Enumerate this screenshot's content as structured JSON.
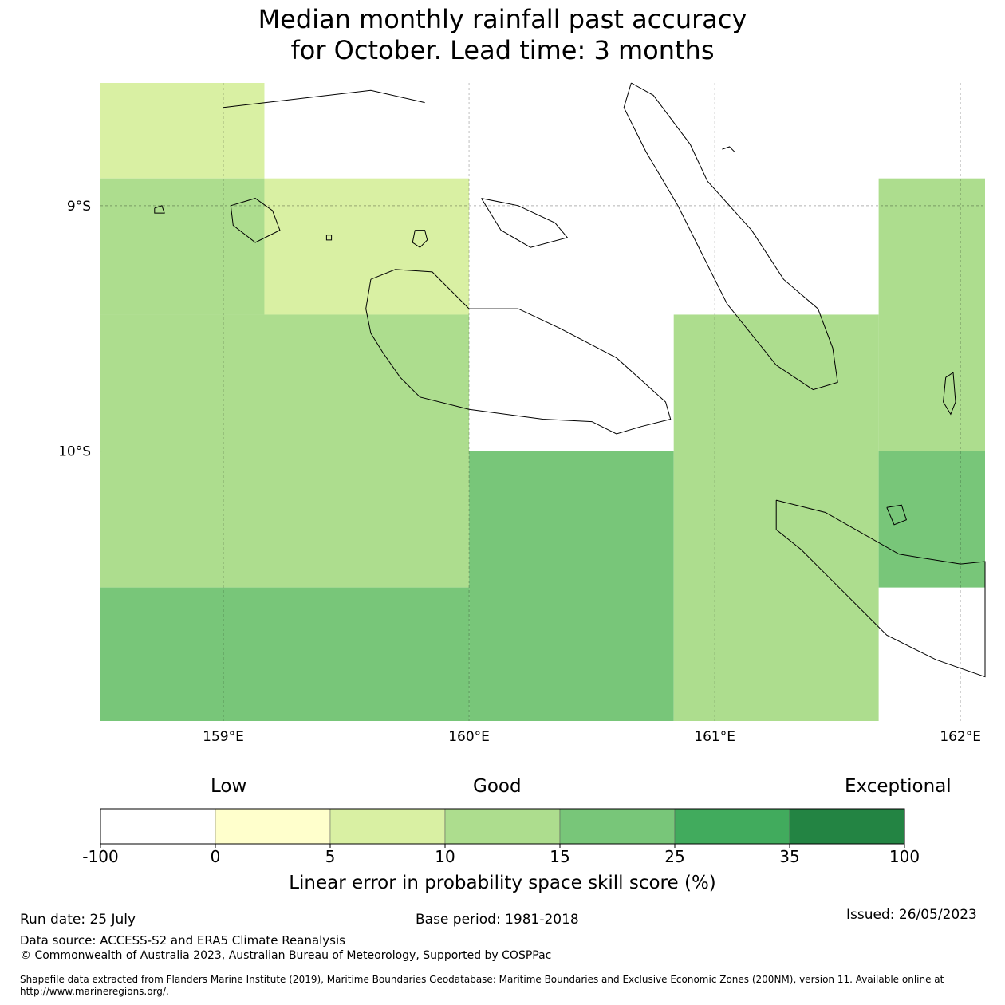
{
  "title": {
    "line1": "Median monthly rainfall past accuracy",
    "line2": "for October. Lead time: 3 months"
  },
  "map": {
    "lon_range": [
      158.5,
      162.1
    ],
    "lat_range": [
      -11.1,
      -8.5
    ],
    "lon_ticks": [
      159,
      160,
      161,
      162
    ],
    "lat_ticks": [
      -9,
      -10
    ],
    "lon_tick_labels": [
      "159°E",
      "160°E",
      "161°E",
      "162°E"
    ],
    "lat_tick_labels": [
      "9°S",
      "10°S"
    ],
    "grid": true,
    "cells": [
      {
        "lon": [
          158.5,
          159.167
        ],
        "lat": [
          -8.889,
          -8.5
        ],
        "value": 7.5
      },
      {
        "lon": [
          158.5,
          159.167
        ],
        "lat": [
          -9.444,
          -8.889
        ],
        "value": 12.5
      },
      {
        "lon": [
          159.167,
          160.0
        ],
        "lat": [
          -9.444,
          -8.889
        ],
        "value": 7.5
      },
      {
        "lon": [
          158.5,
          160.0
        ],
        "lat": [
          -10.0,
          -9.444
        ],
        "value": 12.5
      },
      {
        "lon": [
          158.5,
          160.0
        ],
        "lat": [
          -10.556,
          -10.0
        ],
        "value": 12.5
      },
      {
        "lon": [
          158.5,
          160.0
        ],
        "lat": [
          -11.1,
          -10.556
        ],
        "value": 20
      },
      {
        "lon": [
          160.0,
          160.833
        ],
        "lat": [
          -11.1,
          -10.0
        ],
        "value": 20
      },
      {
        "lon": [
          160.833,
          161.667
        ],
        "lat": [
          -10.0,
          -9.444
        ],
        "value": 12.5
      },
      {
        "lon": [
          160.833,
          161.667
        ],
        "lat": [
          -11.1,
          -10.0
        ],
        "value": 12.5
      },
      {
        "lon": [
          161.667,
          162.1
        ],
        "lat": [
          -10.0,
          -8.889
        ],
        "value": 12.5
      },
      {
        "lon": [
          161.667,
          162.1
        ],
        "lat": [
          -10.556,
          -10.0
        ],
        "value": 20
      }
    ],
    "coastlines": [
      {
        "name": "guadalcanal",
        "points": [
          [
            159.6,
            -9.3
          ],
          [
            159.7,
            -9.26
          ],
          [
            159.85,
            -9.27
          ],
          [
            160.0,
            -9.42
          ],
          [
            160.2,
            -9.42
          ],
          [
            160.37,
            -9.5
          ],
          [
            160.6,
            -9.62
          ],
          [
            160.8,
            -9.8
          ],
          [
            160.82,
            -9.87
          ],
          [
            160.7,
            -9.9
          ],
          [
            160.6,
            -9.93
          ],
          [
            160.5,
            -9.88
          ],
          [
            160.3,
            -9.87
          ],
          [
            160.0,
            -9.83
          ],
          [
            159.8,
            -9.78
          ],
          [
            159.72,
            -9.7
          ],
          [
            159.65,
            -9.6
          ],
          [
            159.6,
            -9.52
          ],
          [
            159.58,
            -9.42
          ],
          [
            159.6,
            -9.3
          ]
        ]
      },
      {
        "name": "malaita",
        "points": [
          [
            160.66,
            -8.5
          ],
          [
            160.75,
            -8.55
          ],
          [
            160.9,
            -8.75
          ],
          [
            160.97,
            -8.9
          ],
          [
            161.15,
            -9.1
          ],
          [
            161.28,
            -9.3
          ],
          [
            161.42,
            -9.42
          ],
          [
            161.48,
            -9.58
          ],
          [
            161.5,
            -9.72
          ],
          [
            161.4,
            -9.75
          ],
          [
            161.25,
            -9.65
          ],
          [
            161.05,
            -9.4
          ],
          [
            160.95,
            -9.2
          ],
          [
            160.85,
            -9.0
          ],
          [
            160.72,
            -8.78
          ],
          [
            160.63,
            -8.6
          ],
          [
            160.66,
            -8.5
          ]
        ]
      },
      {
        "name": "makira",
        "points": [
          [
            161.25,
            -10.2
          ],
          [
            161.45,
            -10.25
          ],
          [
            161.75,
            -10.42
          ],
          [
            162.0,
            -10.46
          ],
          [
            162.1,
            -10.45
          ],
          [
            162.1,
            -10.92
          ],
          [
            161.9,
            -10.85
          ],
          [
            161.7,
            -10.75
          ],
          [
            161.5,
            -10.55
          ],
          [
            161.35,
            -10.4
          ],
          [
            161.25,
            -10.32
          ],
          [
            161.25,
            -10.2
          ]
        ]
      },
      {
        "name": "russell-islands",
        "points": [
          [
            159.03,
            -9.0
          ],
          [
            159.13,
            -8.97
          ],
          [
            159.2,
            -9.02
          ],
          [
            159.23,
            -9.1
          ],
          [
            159.13,
            -9.15
          ],
          [
            159.04,
            -9.08
          ],
          [
            159.03,
            -9.0
          ]
        ]
      },
      {
        "name": "savo",
        "points": [
          [
            159.78,
            -9.1
          ],
          [
            159.82,
            -9.1
          ],
          [
            159.83,
            -9.14
          ],
          [
            159.8,
            -9.17
          ],
          [
            159.77,
            -9.15
          ],
          [
            159.78,
            -9.1
          ]
        ]
      },
      {
        "name": "nggela",
        "points": [
          [
            160.05,
            -8.97
          ],
          [
            160.2,
            -9.0
          ],
          [
            160.35,
            -9.07
          ],
          [
            160.4,
            -9.13
          ],
          [
            160.25,
            -9.17
          ],
          [
            160.13,
            -9.1
          ],
          [
            160.05,
            -8.97
          ]
        ]
      },
      {
        "name": "ulawa",
        "points": [
          [
            161.94,
            -9.7
          ],
          [
            161.97,
            -9.68
          ],
          [
            161.98,
            -9.8
          ],
          [
            161.96,
            -9.85
          ],
          [
            161.93,
            -9.8
          ],
          [
            161.94,
            -9.7
          ]
        ]
      },
      {
        "name": "ugi",
        "points": [
          [
            161.7,
            -10.23
          ],
          [
            161.76,
            -10.22
          ],
          [
            161.78,
            -10.28
          ],
          [
            161.73,
            -10.3
          ],
          [
            161.7,
            -10.23
          ]
        ]
      },
      {
        "name": "islet-1",
        "points": [
          [
            158.72,
            -9.01
          ],
          [
            158.75,
            -9.0
          ],
          [
            158.76,
            -9.03
          ],
          [
            158.72,
            -9.03
          ],
          [
            158.72,
            -9.01
          ]
        ]
      },
      {
        "name": "islet-2",
        "points": [
          [
            159.42,
            -9.12
          ],
          [
            159.44,
            -9.12
          ],
          [
            159.44,
            -9.14
          ],
          [
            159.42,
            -9.14
          ],
          [
            159.42,
            -9.12
          ]
        ]
      },
      {
        "name": "islet-3",
        "points": [
          [
            159.0,
            -8.6
          ],
          [
            159.6,
            -8.53
          ],
          [
            159.82,
            -8.58
          ]
        ]
      },
      {
        "name": "islet-4",
        "points": [
          [
            161.03,
            -8.77
          ],
          [
            161.06,
            -8.76
          ],
          [
            161.08,
            -8.78
          ]
        ]
      }
    ]
  },
  "colorbar": {
    "categories": [
      "Low",
      "Good",
      "Exceptional"
    ],
    "bounds": [
      "-100",
      "0",
      "5",
      "10",
      "15",
      "25",
      "35",
      "100"
    ],
    "colors": [
      "#ffffff",
      "#ffffcc",
      "#d9f0a3",
      "#addd8e",
      "#78c679",
      "#41ab5d",
      "#238443"
    ],
    "label": "Linear error in probability space skill score (%)"
  },
  "footer": {
    "run_date": "Run date: 25 July",
    "base_period": "Base period: 1981-2018",
    "issued": "Issued: 26/05/2023",
    "data_source": "Data source: ACCESS-S2 and ERA5 Climate Reanalysis",
    "copyright": "© Commonwealth of Australia 2023, Australian Bureau of Meteorology, Supported by COSPPac",
    "shapefile_line1": "Shapefile data extracted from Flanders Marine Institute (2019), Maritime Boundaries Geodatabase: Maritime Boundaries and Exclusive Economic Zones (200NM), version 11. Available online at",
    "shapefile_line2": "http://www.marineregions.org/."
  }
}
